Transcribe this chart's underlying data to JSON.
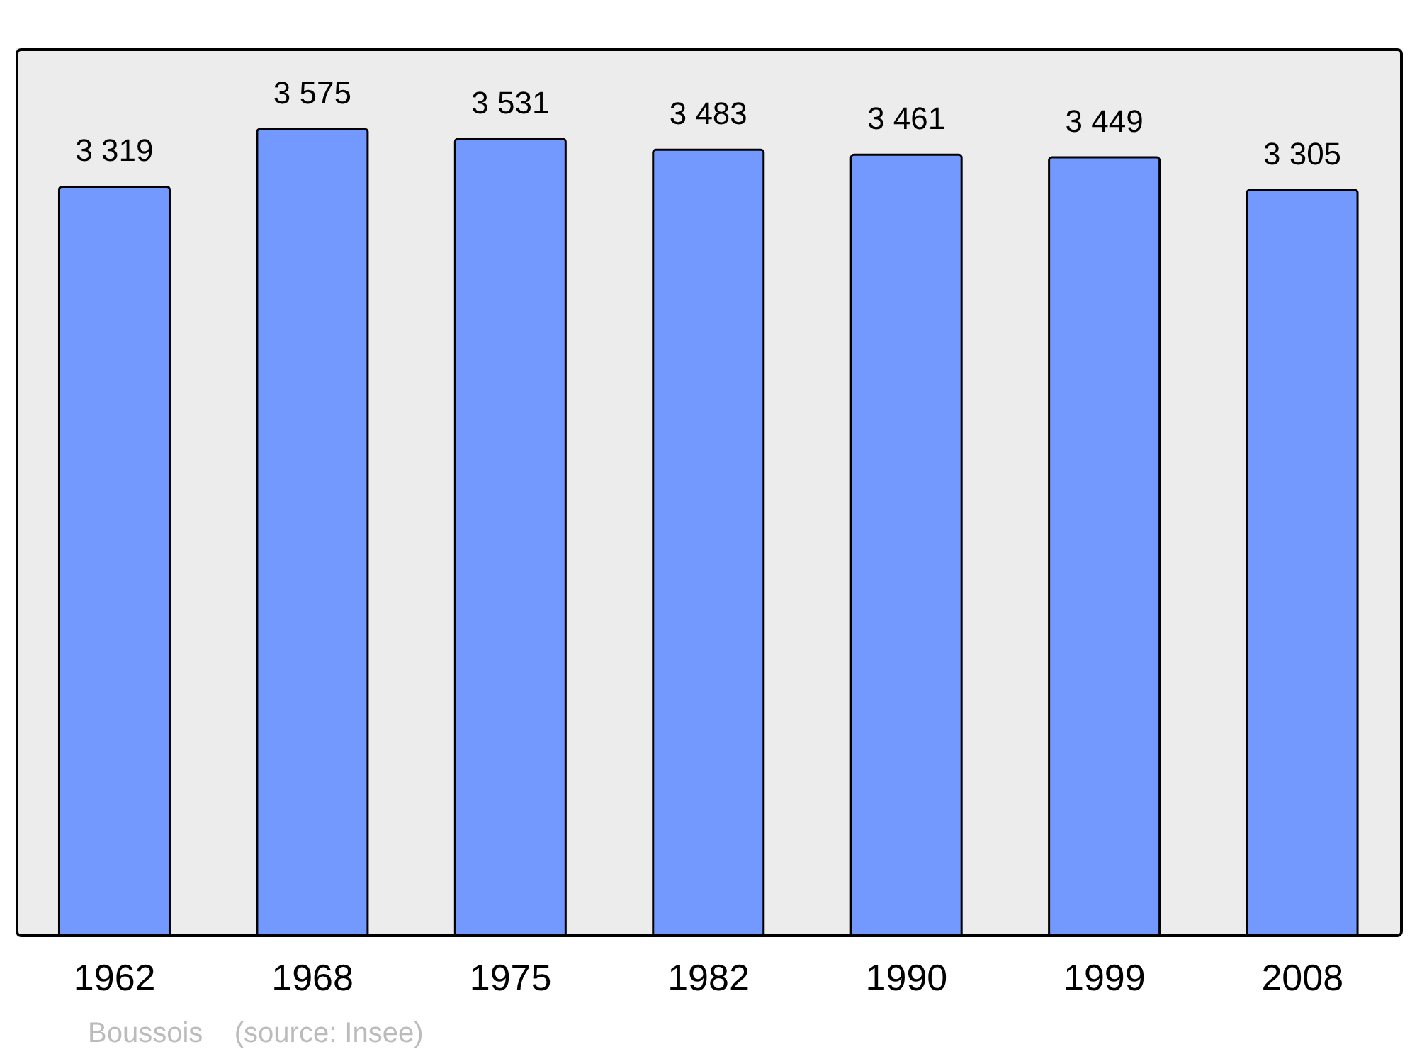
{
  "chart_data": {
    "type": "bar",
    "categories": [
      "1962",
      "1968",
      "1975",
      "1982",
      "1990",
      "1999",
      "2008"
    ],
    "values": [
      3319,
      3575,
      3531,
      3483,
      3461,
      3449,
      3305
    ],
    "value_labels": [
      "3 319",
      "3 575",
      "3 531",
      "3 483",
      "3 461",
      "3 449",
      "3 305"
    ],
    "color": "#7399ff",
    "annotations": [
      "Boussois    (source: Insee)"
    ]
  }
}
